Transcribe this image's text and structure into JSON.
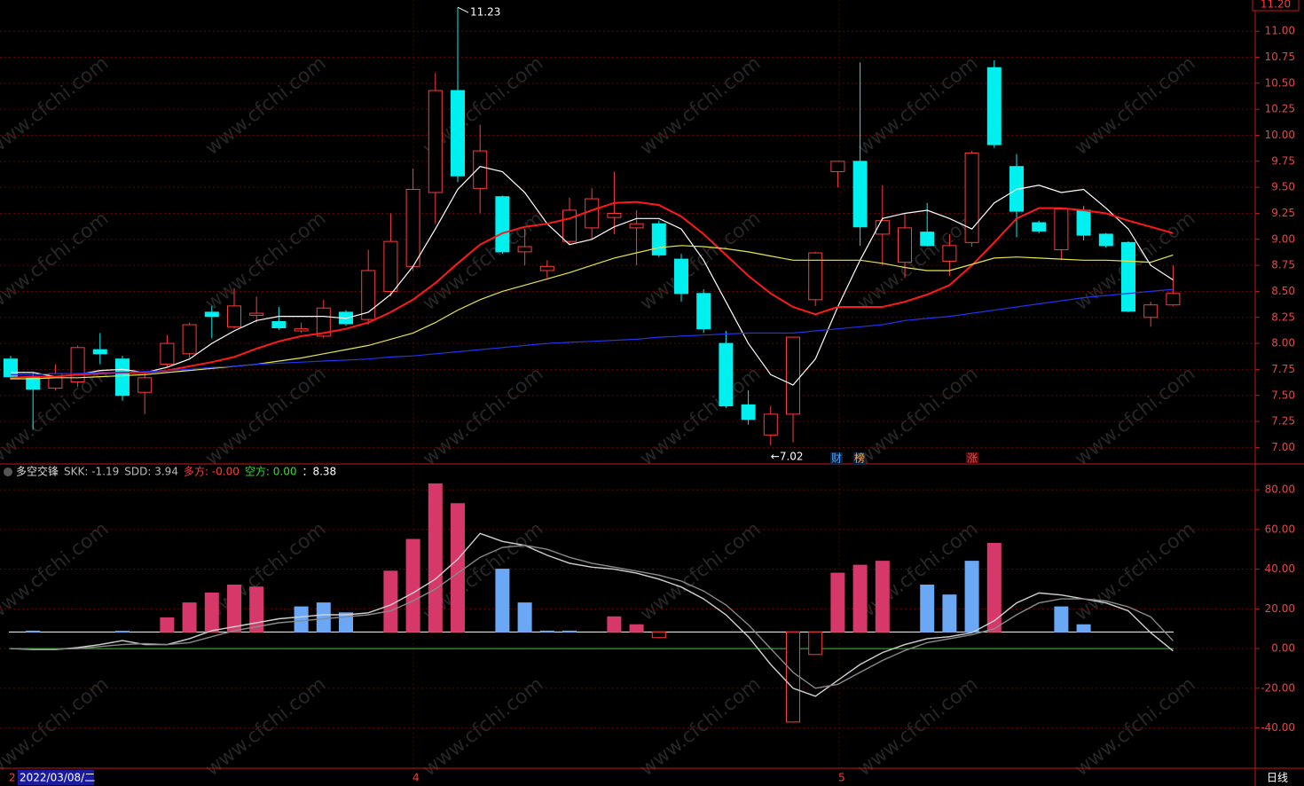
{
  "chart_data": [
    {
      "type": "candlestick",
      "open": [
        7.85,
        7.68,
        7.57,
        7.63,
        7.94,
        7.85,
        7.53,
        7.8,
        7.9,
        8.3,
        8.16,
        8.27,
        8.21,
        8.12,
        8.07,
        8.3,
        8.23,
        8.5,
        8.74,
        9.45,
        10.43,
        9.49,
        9.41,
        8.88,
        8.7,
        8.98,
        9.11,
        9.21,
        9.11,
        9.15,
        8.81,
        8.48,
        8.0,
        7.41,
        7.12,
        7.32,
        8.42,
        9.65,
        9.75,
        9.05,
        8.78,
        9.07,
        8.79,
        8.97,
        10.65,
        9.7,
        9.16,
        8.9,
        9.28,
        9.05,
        8.97,
        8.25,
        8.37
      ],
      "high": [
        7.88,
        7.72,
        7.8,
        7.98,
        8.1,
        7.88,
        7.72,
        8.08,
        8.2,
        8.36,
        8.53,
        8.45,
        8.35,
        8.2,
        8.42,
        8.32,
        8.9,
        9.25,
        9.68,
        10.6,
        11.23,
        10.1,
        9.42,
        9.1,
        8.8,
        9.4,
        9.49,
        9.65,
        9.28,
        9.18,
        8.86,
        8.52,
        8.12,
        7.55,
        7.4,
        8.06,
        8.88,
        9.75,
        10.7,
        9.52,
        9.25,
        9.35,
        9.05,
        9.85,
        10.72,
        9.82,
        9.18,
        9.3,
        9.32,
        9.06,
        8.98,
        8.4,
        8.75
      ],
      "low": [
        7.65,
        7.17,
        7.55,
        7.58,
        7.8,
        7.45,
        7.32,
        7.77,
        7.86,
        8.05,
        8.14,
        8.2,
        8.13,
        8.1,
        8.05,
        8.17,
        8.18,
        8.45,
        8.7,
        9.15,
        9.55,
        9.25,
        8.86,
        8.75,
        8.63,
        8.95,
        9.0,
        9.05,
        8.75,
        8.83,
        8.4,
        8.1,
        7.38,
        7.22,
        7.02,
        7.05,
        8.36,
        9.5,
        8.94,
        8.75,
        8.63,
        8.93,
        8.65,
        8.93,
        9.88,
        9.02,
        9.06,
        8.8,
        8.99,
        8.92,
        8.3,
        8.16,
        8.36
      ],
      "close": [
        7.68,
        7.56,
        7.71,
        7.96,
        7.9,
        7.5,
        7.67,
        8.0,
        8.18,
        8.26,
        8.36,
        8.29,
        8.15,
        8.14,
        8.34,
        8.19,
        8.7,
        8.98,
        9.48,
        10.43,
        9.61,
        9.85,
        8.88,
        8.93,
        8.74,
        9.28,
        9.39,
        9.25,
        9.15,
        8.85,
        8.48,
        8.14,
        7.4,
        7.27,
        7.32,
        8.06,
        8.87,
        9.75,
        9.12,
        9.18,
        9.11,
        8.94,
        8.94,
        9.83,
        9.91,
        9.27,
        9.08,
        9.29,
        9.04,
        8.94,
        8.31,
        8.37,
        8.48
      ],
      "up_color": "#ff3b3b",
      "down_color": "#00f0f0",
      "series": [
        {
          "color": "#ffffff",
          "values": [
            7.72,
            7.72,
            7.68,
            7.7,
            7.74,
            7.75,
            7.72,
            7.77,
            7.85,
            8.0,
            8.12,
            8.22,
            8.26,
            8.26,
            8.26,
            8.24,
            8.3,
            8.47,
            8.74,
            9.1,
            9.48,
            9.7,
            9.65,
            9.45,
            9.15,
            8.95,
            9.0,
            9.12,
            9.2,
            9.2,
            9.1,
            8.8,
            8.4,
            8.0,
            7.7,
            7.6,
            7.85,
            8.35,
            8.8,
            9.2,
            9.25,
            9.28,
            9.2,
            9.1,
            9.35,
            9.48,
            9.52,
            9.45,
            9.48,
            9.3,
            9.1,
            8.75,
            8.61
          ]
        },
        {
          "color": "#ff1a1a",
          "values": [
            7.67,
            7.68,
            7.68,
            7.7,
            7.71,
            7.72,
            7.72,
            7.74,
            7.78,
            7.82,
            7.87,
            7.95,
            8.02,
            8.07,
            8.1,
            8.14,
            8.2,
            8.3,
            8.42,
            8.58,
            8.77,
            8.95,
            9.06,
            9.12,
            9.15,
            9.2,
            9.28,
            9.35,
            9.36,
            9.33,
            9.22,
            9.05,
            8.85,
            8.65,
            8.48,
            8.35,
            8.28,
            8.35,
            8.35,
            8.35,
            8.4,
            8.47,
            8.56,
            8.75,
            8.97,
            9.2,
            9.3,
            9.3,
            9.28,
            9.25,
            9.18,
            9.12,
            9.06
          ]
        },
        {
          "color": "#e6e64a",
          "values": [
            7.66,
            7.66,
            7.67,
            7.67,
            7.68,
            7.69,
            7.7,
            7.72,
            7.74,
            7.76,
            7.78,
            7.8,
            7.83,
            7.86,
            7.9,
            7.94,
            7.98,
            8.04,
            8.1,
            8.2,
            8.32,
            8.42,
            8.5,
            8.56,
            8.62,
            8.68,
            8.75,
            8.82,
            8.87,
            8.92,
            8.94,
            8.93,
            8.91,
            8.88,
            8.84,
            8.8,
            8.8,
            8.8,
            8.8,
            8.77,
            8.73,
            8.7,
            8.7,
            8.76,
            8.82,
            8.83,
            8.82,
            8.81,
            8.8,
            8.8,
            8.79,
            8.78,
            8.85
          ]
        },
        {
          "color": "#2233ee",
          "values": [
            7.7,
            7.7,
            7.71,
            7.71,
            7.72,
            7.72,
            7.73,
            7.74,
            7.75,
            7.77,
            7.78,
            7.8,
            7.81,
            7.82,
            7.83,
            7.84,
            7.85,
            7.87,
            7.88,
            7.9,
            7.92,
            7.94,
            7.96,
            7.98,
            8.0,
            8.01,
            8.02,
            8.03,
            8.04,
            8.06,
            8.07,
            8.08,
            8.09,
            8.1,
            8.1,
            8.1,
            8.12,
            8.14,
            8.16,
            8.18,
            8.22,
            8.24,
            8.26,
            8.29,
            8.32,
            8.35,
            8.38,
            8.41,
            8.44,
            8.46,
            8.48,
            8.5,
            8.52
          ]
        }
      ],
      "ylim": [
        6.85,
        11.3
      ],
      "yticks": [
        {
          "value": 7,
          "label": "7.00"
        },
        {
          "value": 7.25,
          "label": "7.25"
        },
        {
          "value": 7.5,
          "label": "7.50"
        },
        {
          "value": 7.75,
          "label": "7.75"
        },
        {
          "value": 8,
          "label": "8.00"
        },
        {
          "value": 8.25,
          "label": "8.25"
        },
        {
          "value": 8.5,
          "label": "8.50"
        },
        {
          "value": 8.75,
          "label": "8.75"
        },
        {
          "value": 9,
          "label": "9.00"
        },
        {
          "value": 9.25,
          "label": "9.25"
        },
        {
          "value": 9.5,
          "label": "9.50"
        },
        {
          "value": 9.75,
          "label": "9.75"
        },
        {
          "value": 10,
          "label": "10.00"
        },
        {
          "value": 10.25,
          "label": "10.25"
        },
        {
          "value": 10.5,
          "label": "10.50"
        },
        {
          "value": 10.75,
          "label": "10.75"
        },
        {
          "value": 11,
          "label": "11.00"
        }
      ],
      "annotations": [
        "11.23",
        "←7.02"
      ],
      "price_tag": "11.20",
      "event_marks": [
        "财",
        "榜",
        "涨"
      ]
    },
    {
      "type": "indicator",
      "title": "多空交锋",
      "legend": [
        {
          "text": "SKK: -1.19",
          "color": "#bbbbbb"
        },
        {
          "text": "SDD: 3.94",
          "color": "#bbbbbb"
        },
        {
          "text": "多方: -0.00",
          "color": "#ff3b3b"
        },
        {
          "text": "空方: 0.00",
          "color": "#33dd33"
        },
        {
          "text": "：8.38",
          "color": "#ffffff"
        }
      ],
      "baseline": 8.38,
      "red_color": "#d6386a",
      "blue_color": "#6aa8f5",
      "red_bars": [
        null,
        null,
        null,
        null,
        null,
        null,
        null,
        15.5,
        23,
        28,
        32,
        31,
        null,
        null,
        null,
        null,
        null,
        39,
        55,
        83,
        73,
        null,
        null,
        null,
        null,
        null,
        null,
        16,
        12,
        5.5,
        null,
        null,
        null,
        null,
        null,
        -37,
        -3,
        38,
        42,
        44,
        null,
        null,
        null,
        null,
        53,
        null,
        null,
        null,
        null,
        null,
        null,
        null,
        null
      ],
      "blue_bars": [
        null,
        8.8,
        null,
        null,
        null,
        8.7,
        null,
        null,
        null,
        null,
        null,
        null,
        null,
        21,
        23,
        18,
        null,
        null,
        null,
        null,
        null,
        null,
        40,
        23,
        8.8,
        8.8,
        null,
        null,
        null,
        null,
        null,
        null,
        null,
        null,
        null,
        null,
        null,
        null,
        null,
        null,
        null,
        32,
        27,
        44,
        null,
        null,
        null,
        21,
        12,
        null,
        null,
        null,
        null
      ],
      "series": [
        {
          "color": "#d0d0d0",
          "values": [
            0,
            -0.5,
            -0.5,
            0.5,
            2,
            4,
            2,
            2,
            5,
            9,
            11,
            13,
            15,
            16,
            17,
            17,
            18,
            22,
            28,
            35,
            45,
            58,
            54,
            52,
            47,
            43,
            41,
            40,
            38,
            35,
            31,
            25,
            17,
            6,
            -8,
            -20,
            -24,
            -16,
            -8,
            -2,
            2,
            5,
            6,
            8,
            14,
            23,
            28,
            27,
            25,
            23,
            19,
            8,
            -1.19
          ]
        },
        {
          "color": "#8a8a8a",
          "values": [
            0,
            -0.3,
            -0.3,
            0,
            1,
            2,
            2.5,
            2,
            3,
            6,
            9,
            11,
            13,
            14,
            15,
            16,
            17,
            19,
            24,
            30,
            38,
            46,
            51,
            52,
            50,
            46,
            43,
            41,
            39,
            37,
            34,
            29,
            22,
            12,
            0,
            -12,
            -20,
            -18,
            -12,
            -6,
            -1,
            3,
            5,
            7,
            10,
            17,
            23,
            25,
            25,
            24,
            21,
            16,
            3.94
          ]
        }
      ],
      "zero_color": "#33cc33",
      "ylim": [
        -60.3,
        92.1
      ],
      "yticks": [
        {
          "value": 80,
          "label": "80.00"
        },
        {
          "value": 60,
          "label": "60.00"
        },
        {
          "value": 40,
          "label": "40.00"
        },
        {
          "value": 20,
          "label": "20.00"
        },
        {
          "value": 0,
          "label": "0.00"
        },
        {
          "value": -20,
          "label": "-20.00"
        },
        {
          "value": -40,
          "label": "-40.00"
        }
      ]
    }
  ],
  "footer": {
    "date": "2022/03/08/二",
    "month_labels": [
      "2",
      "4",
      "5"
    ],
    "period": "日线"
  },
  "watermark": "www.cfchi.com"
}
